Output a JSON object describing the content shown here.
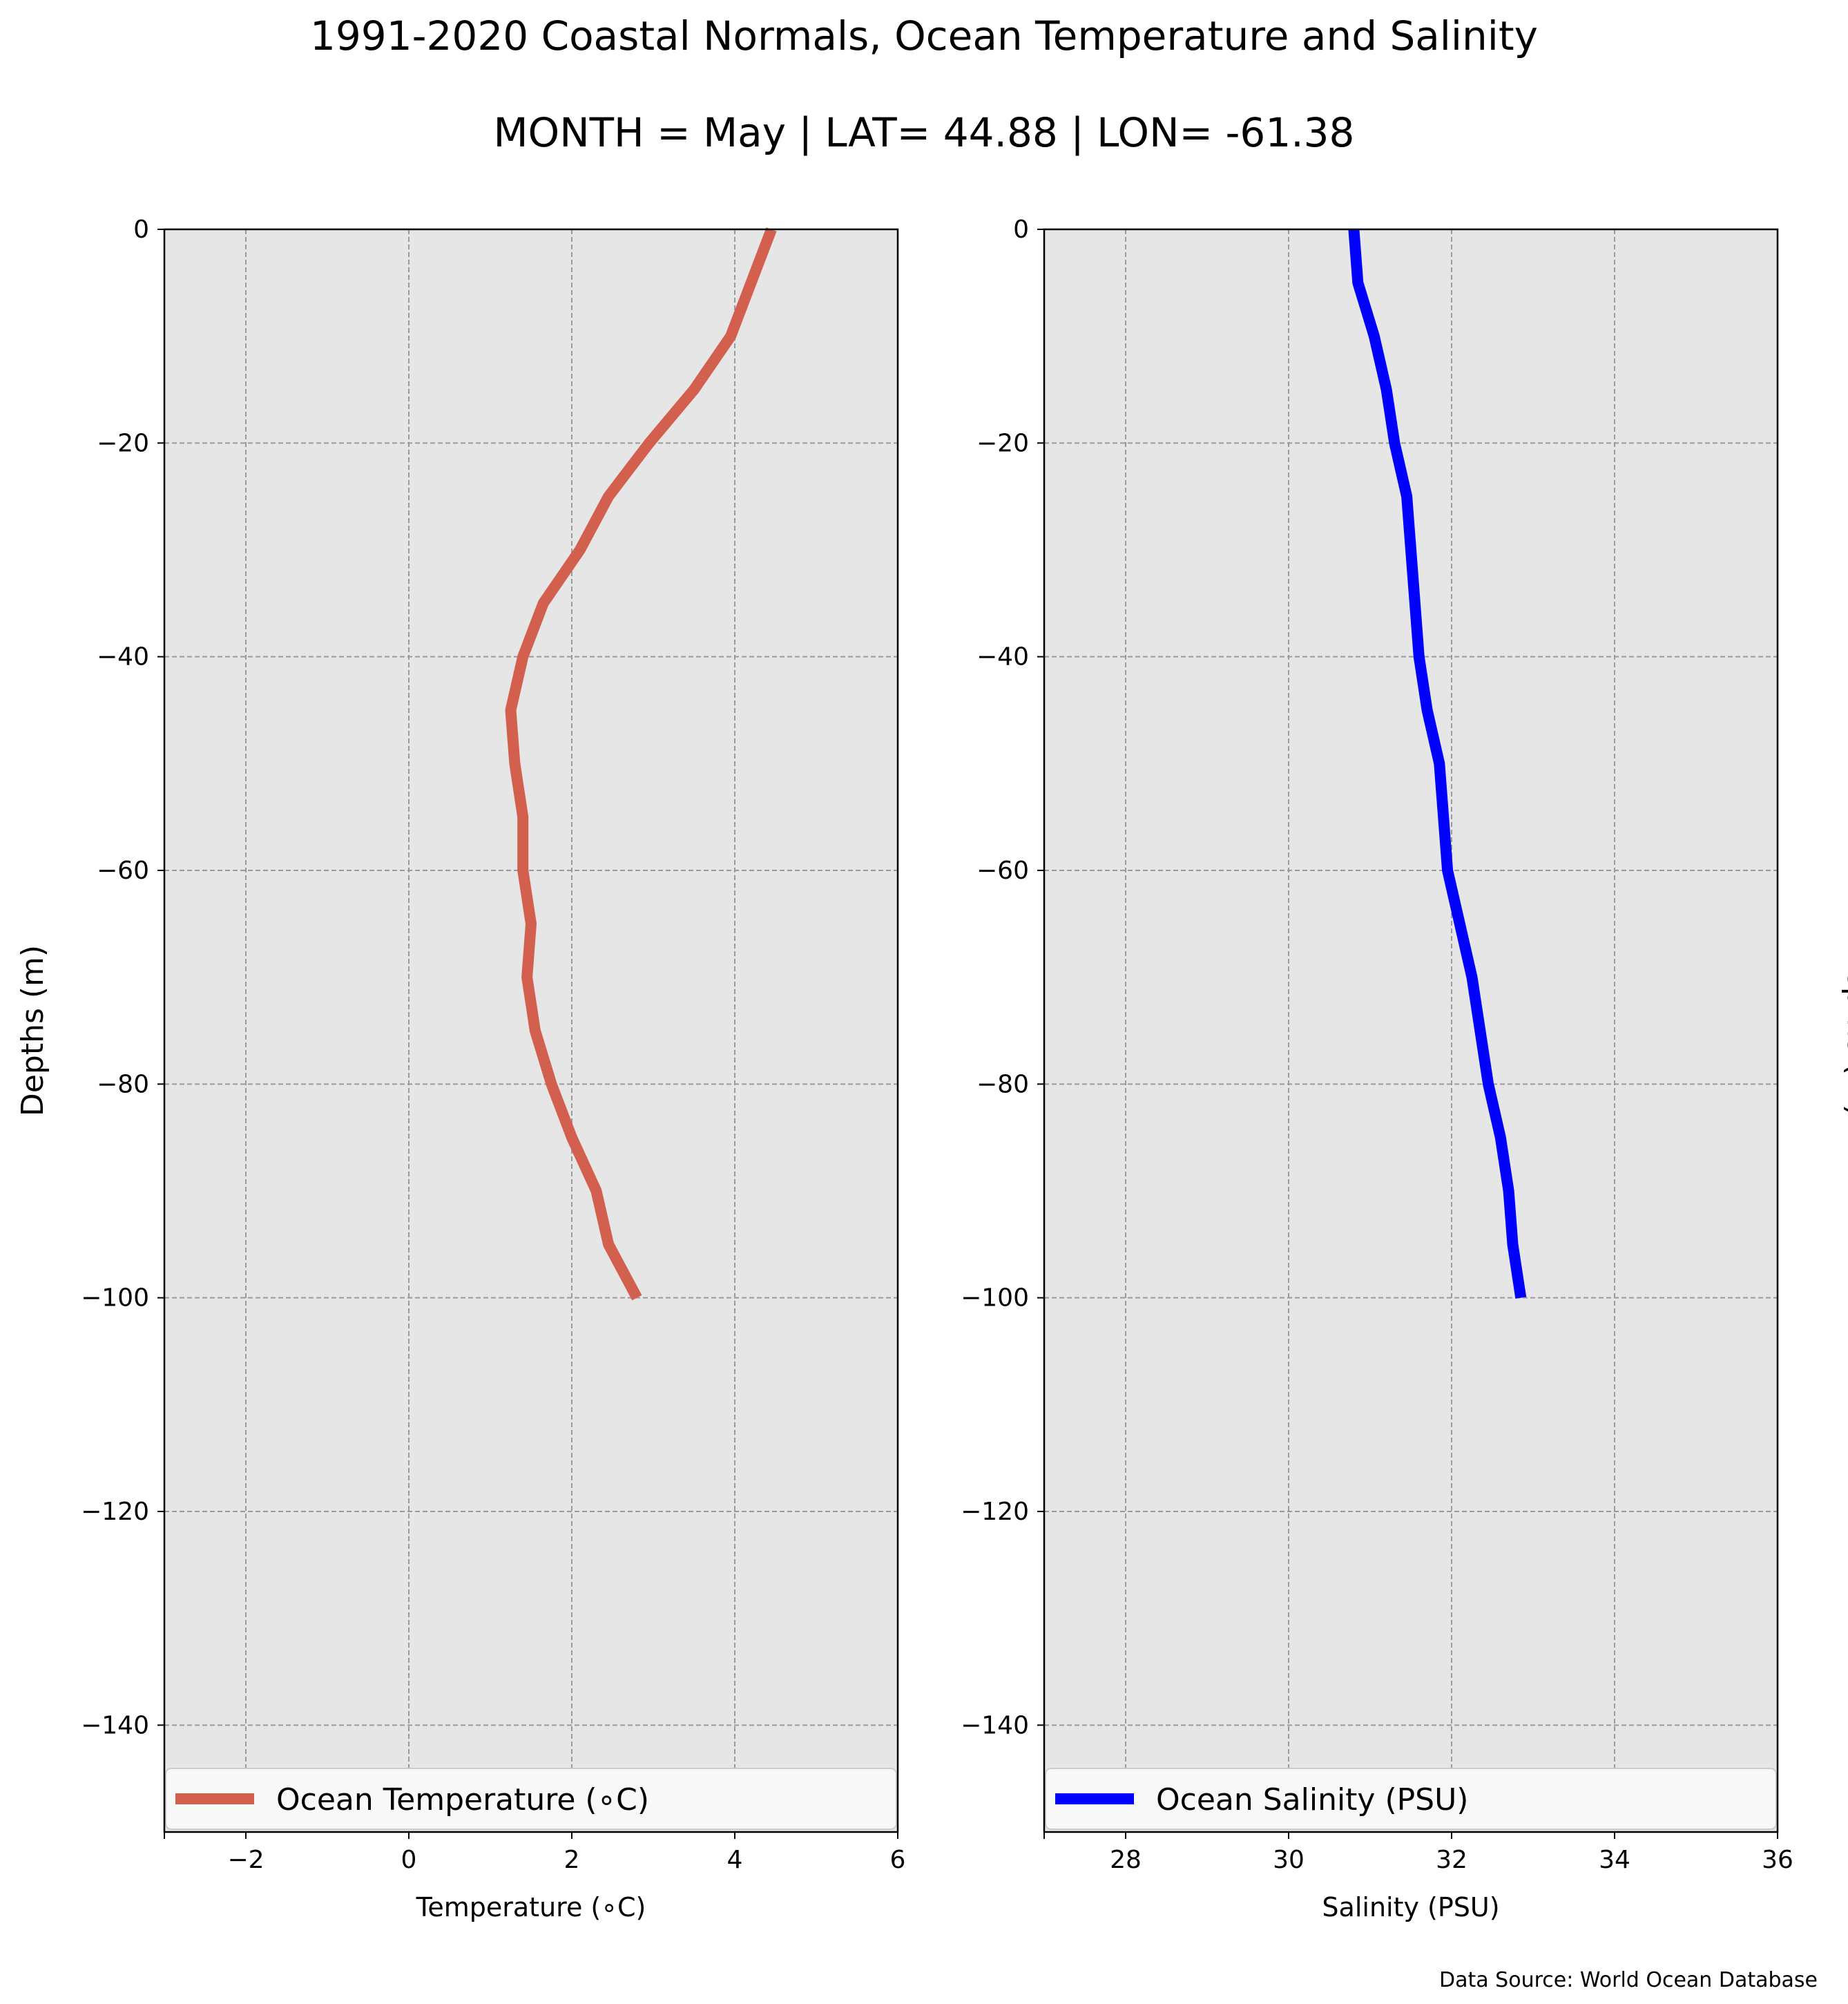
{
  "figure": {
    "title": "1991-2020 Coastal Normals, Ocean Temperature and Salinity",
    "subtitle": "MONTH = May | LAT= 44.88 | LON= -61.38",
    "source": "Data Source: World Ocean Database"
  },
  "chart_data": [
    {
      "type": "line",
      "xlabel": "Temperature (∘C)",
      "ylabel": "Depths (m)",
      "ylabel_position": "left",
      "xlim": [
        -3,
        6
      ],
      "ylim": [
        -150,
        0
      ],
      "xticks": [
        -2,
        0,
        2,
        4,
        6
      ],
      "xtick_labels": [
        "−2",
        "0",
        "2",
        "4",
        "6"
      ],
      "yticks": [
        0,
        -20,
        -40,
        -60,
        -80,
        -100,
        -120,
        -140
      ],
      "ytick_labels": [
        "0",
        "−20",
        "−40",
        "−60",
        "−80",
        "−100",
        "−120",
        "−140"
      ],
      "grid": true,
      "background": "#e6e6e6",
      "legend_position": "bottom",
      "series": [
        {
          "name": "Ocean Temperature (∘C)",
          "color": "#d35f4e",
          "x": [
            4.45,
            4.2,
            3.95,
            3.5,
            2.95,
            2.45,
            2.1,
            1.65,
            1.4,
            1.25,
            1.3,
            1.4,
            1.4,
            1.5,
            1.45,
            1.55,
            1.75,
            2.0,
            2.3,
            2.45,
            2.8
          ],
          "y": [
            0,
            -5,
            -10,
            -15,
            -20,
            -25,
            -30,
            -35,
            -40,
            -45,
            -50,
            -55,
            -60,
            -65,
            -70,
            -75,
            -80,
            -85,
            -90,
            -95,
            -100
          ]
        }
      ]
    },
    {
      "type": "line",
      "xlabel": "Salinity (PSU)",
      "ylabel": "Depths (m)",
      "ylabel_position": "right",
      "xlim": [
        27,
        36
      ],
      "ylim": [
        -150,
        0
      ],
      "xticks": [
        28,
        30,
        32,
        34,
        36
      ],
      "xtick_labels": [
        "28",
        "30",
        "32",
        "34",
        "36"
      ],
      "yticks": [
        0,
        -20,
        -40,
        -60,
        -80,
        -100,
        -120,
        -140
      ],
      "ytick_labels": [
        "0",
        "−20",
        "−40",
        "−60",
        "−80",
        "−100",
        "−120",
        "−140"
      ],
      "grid": true,
      "background": "#e6e6e6",
      "legend_position": "bottom",
      "series": [
        {
          "name": "Ocean Salinity (PSU)",
          "color": "#0000ff",
          "x": [
            30.8,
            30.85,
            31.05,
            31.2,
            31.3,
            31.45,
            31.5,
            31.55,
            31.6,
            31.7,
            31.85,
            31.9,
            31.95,
            32.1,
            32.25,
            32.35,
            32.45,
            32.6,
            32.7,
            32.75,
            32.85
          ],
          "y": [
            0,
            -5,
            -10,
            -15,
            -20,
            -25,
            -30,
            -35,
            -40,
            -45,
            -50,
            -55,
            -60,
            -65,
            -70,
            -75,
            -80,
            -85,
            -90,
            -95,
            -100
          ]
        }
      ]
    }
  ]
}
